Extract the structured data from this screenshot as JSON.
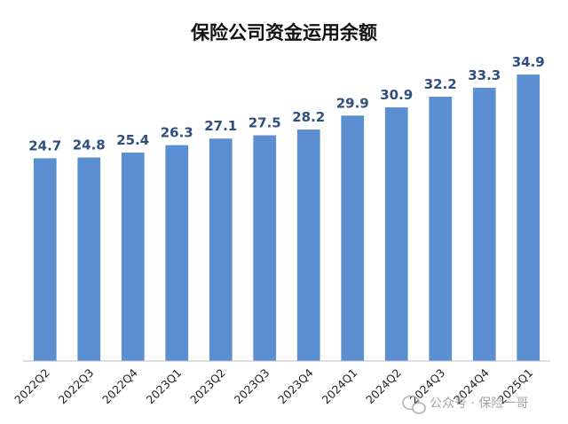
{
  "chart_data": {
    "type": "bar",
    "title": "保险公司资金运用余额",
    "categories": [
      "2022Q2",
      "2022Q3",
      "2022Q4",
      "2023Q1",
      "2023Q2",
      "2023Q3",
      "2023Q4",
      "2024Q1",
      "2024Q2",
      "2024Q3",
      "2024Q4",
      "2025Q1"
    ],
    "values": [
      24.7,
      24.8,
      25.4,
      26.3,
      27.1,
      27.5,
      28.2,
      29.9,
      30.9,
      32.2,
      33.3,
      34.9
    ],
    "data_labels": [
      "24.7",
      "24.8",
      "25.4",
      "26.3",
      "27.1",
      "27.5",
      "28.2",
      "29.9",
      "30.9",
      "32.2",
      "33.3",
      "34.9"
    ],
    "xlabel": "",
    "ylabel": "",
    "ylim": [
      0,
      37.5
    ],
    "grid": false,
    "legend": "none",
    "colors": {
      "bar": "#5b8fd2",
      "label": "#2f4f7f",
      "axis": "#bfbfbf"
    }
  },
  "watermark": {
    "text": "公众号 · 保险一哥",
    "icon": "wechat-icon"
  }
}
